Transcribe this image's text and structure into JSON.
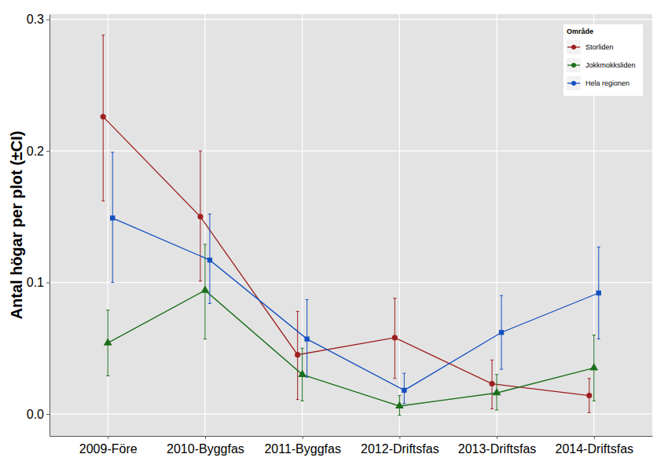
{
  "chart_data": {
    "type": "line",
    "y_label": "Antal högar per plot (±CI)",
    "categories": [
      "2009-Före",
      "2010-Byggfas",
      "2011-Byggfas",
      "2012-Driftsfas",
      "2013-Driftsfas",
      "2014-Driftsfas"
    ],
    "legend_title": "Område",
    "series": [
      {
        "name": "Storliden",
        "color": "#9E1F1F",
        "marker": "circle",
        "values": [
          0.226,
          0.15,
          0.045,
          0.058,
          0.023,
          0.014
        ],
        "ci_lower": [
          0.162,
          0.101,
          0.011,
          0.027,
          0.004,
          0.001
        ],
        "ci_upper": [
          0.288,
          0.2,
          0.078,
          0.088,
          0.041,
          0.027
        ]
      },
      {
        "name": "Jokkmokksliden",
        "color": "#1B6E1B",
        "marker": "triangle",
        "values": [
          0.054,
          0.094,
          0.03,
          0.006,
          0.016,
          0.035
        ],
        "ci_lower": [
          0.029,
          0.057,
          0.01,
          -0.001,
          0.003,
          0.01
        ],
        "ci_upper": [
          0.079,
          0.129,
          0.05,
          0.014,
          0.03,
          0.06
        ]
      },
      {
        "name": "Hela regionen",
        "color": "#1450C0",
        "marker": "square",
        "values": [
          0.149,
          0.117,
          0.057,
          0.018,
          0.062,
          0.092
        ],
        "ci_lower": [
          0.1,
          0.084,
          0.028,
          0.008,
          0.034,
          0.057
        ],
        "ci_upper": [
          0.199,
          0.152,
          0.087,
          0.031,
          0.09,
          0.127
        ]
      }
    ],
    "ylim": [
      -0.0167,
      0.304
    ],
    "yticks": [
      {
        "value": 0,
        "label": "0.0"
      },
      0.1,
      0.2,
      0.3
    ],
    "grid": true,
    "legend": "top-right"
  }
}
